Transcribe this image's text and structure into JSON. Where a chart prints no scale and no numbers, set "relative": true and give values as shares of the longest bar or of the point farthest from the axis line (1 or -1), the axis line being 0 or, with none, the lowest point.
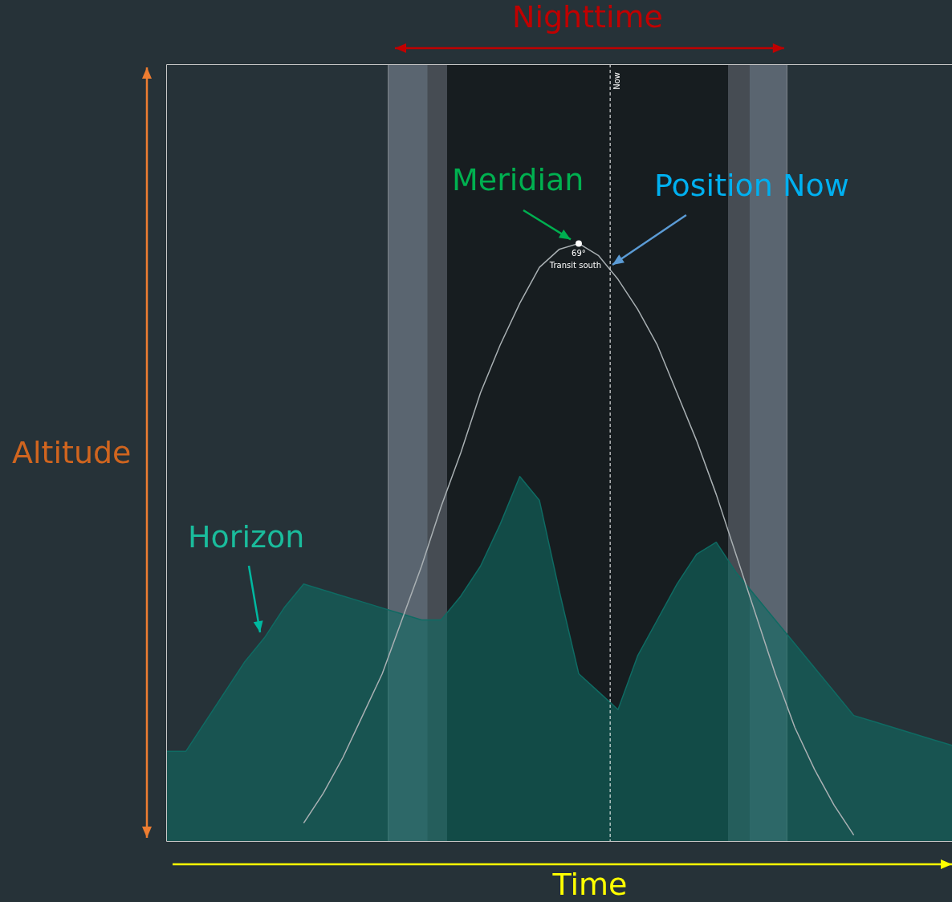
{
  "chart_data": {
    "type": "line",
    "relative": true,
    "xlabel": "Time",
    "ylabel": "Altitude",
    "categories": [
      null,
      null,
      null,
      null,
      null,
      null,
      null,
      null,
      null,
      null,
      null,
      null,
      null,
      null,
      null,
      null,
      null,
      null,
      null,
      null,
      null,
      null,
      null,
      null,
      null,
      null,
      null,
      null,
      null,
      null,
      null,
      null,
      null,
      null,
      null,
      null,
      null,
      null,
      null,
      null,
      null
    ],
    "series": [
      {
        "name": "Horizon",
        "type": "area",
        "color": "#0f6b63",
        "values": [
          0.15,
          0.15,
          0.2,
          0.25,
          0.3,
          0.34,
          0.39,
          0.43,
          0.42,
          0.41,
          0.4,
          0.39,
          0.38,
          0.37,
          0.37,
          0.41,
          0.46,
          0.53,
          0.61,
          0.57,
          0.42,
          0.28,
          0.25,
          0.22,
          0.31,
          0.37,
          0.43,
          0.48,
          0.5,
          0.45,
          0.41,
          0.37,
          0.33,
          0.29,
          0.25,
          0.21,
          0.2,
          0.19,
          0.18,
          0.17,
          0.16
        ]
      },
      {
        "color": "#a9b0b3",
        "values": [
          null,
          null,
          null,
          null,
          null,
          null,
          null,
          0.03,
          0.08,
          0.14,
          0.21,
          0.28,
          0.37,
          0.46,
          0.56,
          0.65,
          0.75,
          0.83,
          0.9,
          0.96,
          0.99,
          1,
          0.98,
          0.94,
          0.89,
          0.83,
          0.75,
          0.67,
          0.58,
          0.48,
          0.38,
          0.28,
          0.19,
          0.12,
          0.06,
          0.01,
          null,
          null,
          null,
          null,
          null
        ]
      }
    ],
    "annotations": [
      "Nighttime",
      "Meridian",
      "Position Now",
      "Now",
      "69°",
      "Transit south"
    ],
    "legend": false,
    "marker": "none"
  }
}
